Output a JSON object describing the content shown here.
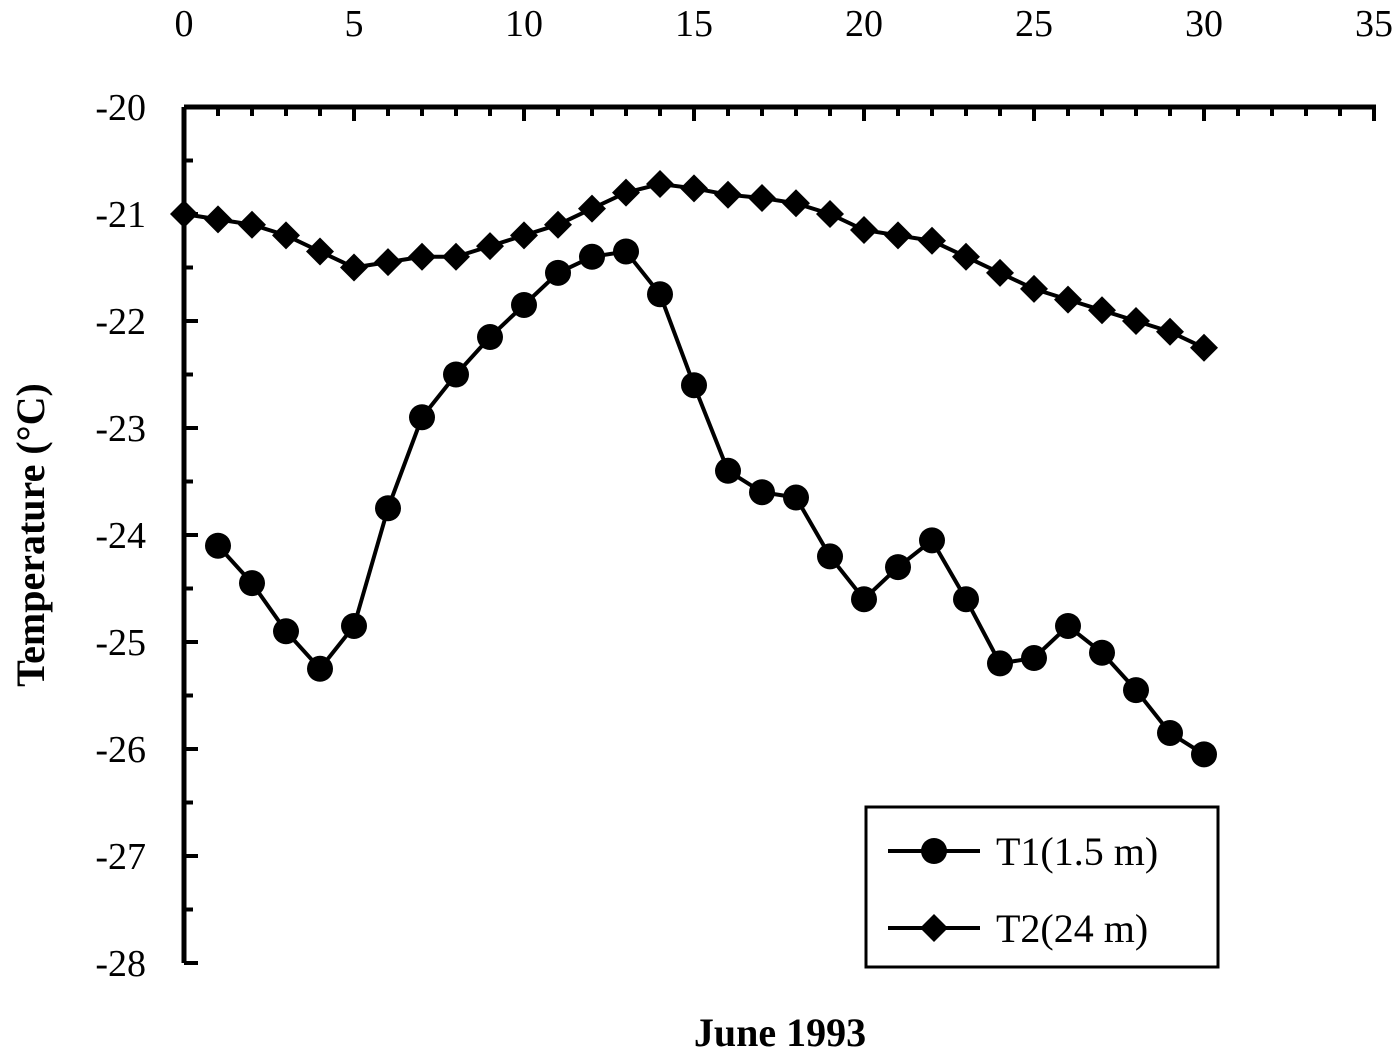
{
  "chart_data": {
    "type": "line",
    "title": "",
    "xlabel": "June 1993",
    "ylabel": "Temperature (°C)",
    "xlim": [
      0,
      35
    ],
    "ylim": [
      -28,
      -20
    ],
    "x_ticks": [
      0,
      5,
      10,
      15,
      20,
      25,
      30,
      35
    ],
    "y_ticks": [
      -20,
      -21,
      -22,
      -23,
      -24,
      -25,
      -26,
      -27,
      -28
    ],
    "x_tick_labels": [
      "0",
      "5",
      "10",
      "15",
      "20",
      "25",
      "30",
      "35"
    ],
    "y_tick_labels": [
      "-20",
      "-21",
      "-22",
      "-23",
      "-24",
      "-25",
      "-26",
      "-27",
      "-28"
    ],
    "x_axis_position": "top",
    "grid": false,
    "legend_position": "bottom-right",
    "series": [
      {
        "name": "T1(1.5 m)",
        "marker": "circle",
        "x": [
          1,
          2,
          3,
          4,
          5,
          6,
          7,
          8,
          9,
          10,
          11,
          12,
          13,
          14,
          15,
          16,
          17,
          18,
          19,
          20,
          21,
          22,
          23,
          24,
          25,
          26,
          27,
          28,
          29,
          30
        ],
        "values": [
          -24.1,
          -24.45,
          -24.9,
          -25.25,
          -24.85,
          -23.75,
          -22.9,
          -22.5,
          -22.15,
          -21.85,
          -21.55,
          -21.4,
          -21.35,
          -21.75,
          -22.6,
          -23.4,
          -23.6,
          -23.65,
          -24.2,
          -24.6,
          -24.3,
          -24.05,
          -24.6,
          -25.2,
          -25.15,
          -24.85,
          -25.1,
          -25.45,
          -25.85,
          -26.05
        ]
      },
      {
        "name": "T2(24 m)",
        "marker": "diamond",
        "x": [
          0,
          1,
          2,
          3,
          4,
          5,
          6,
          7,
          8,
          9,
          10,
          11,
          12,
          13,
          14,
          15,
          16,
          17,
          18,
          19,
          20,
          21,
          22,
          23,
          24,
          25,
          26,
          27,
          28,
          29,
          30
        ],
        "values": [
          -21.0,
          -21.05,
          -21.1,
          -21.2,
          -21.35,
          -21.5,
          -21.45,
          -21.4,
          -21.4,
          -21.3,
          -21.2,
          -21.1,
          -20.95,
          -20.8,
          -20.72,
          -20.76,
          -20.82,
          -20.85,
          -20.9,
          -21.0,
          -21.15,
          -21.2,
          -21.25,
          -21.4,
          -21.55,
          -21.7,
          -21.8,
          -21.9,
          -22.0,
          -22.1,
          -22.25
        ]
      }
    ]
  }
}
